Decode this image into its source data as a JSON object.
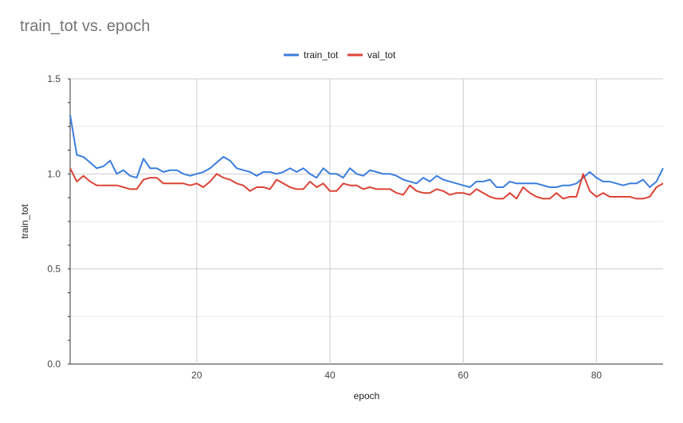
{
  "chart_data": {
    "type": "line",
    "title": "train_tot vs. epoch",
    "xlabel": "epoch",
    "ylabel": "train_tot",
    "xlim": [
      1,
      90
    ],
    "ylim": [
      0,
      1.5
    ],
    "x_ticks": [
      20,
      40,
      60,
      80
    ],
    "x_tick_labels": [
      "20",
      "40",
      "60",
      "80"
    ],
    "y_ticks": [
      0,
      0.5,
      1,
      1.5
    ],
    "y_tick_labels": [
      "0.0",
      "0.5",
      "1.0",
      "1.5"
    ],
    "grid": true,
    "legend_position": "top",
    "series": [
      {
        "name": "train_tot",
        "color": "#3b7ddd",
        "x": [
          1,
          2,
          3,
          4,
          5,
          6,
          7,
          8,
          9,
          10,
          11,
          12,
          13,
          14,
          15,
          16,
          17,
          18,
          19,
          20,
          21,
          22,
          23,
          24,
          25,
          26,
          27,
          28,
          29,
          30,
          31,
          32,
          33,
          34,
          35,
          36,
          37,
          38,
          39,
          40,
          41,
          42,
          43,
          44,
          45,
          46,
          47,
          48,
          49,
          50,
          51,
          52,
          53,
          54,
          55,
          56,
          57,
          58,
          59,
          60,
          61,
          62,
          63,
          64,
          65,
          66,
          67,
          68,
          69,
          70,
          71,
          72,
          73,
          74,
          75,
          76,
          77,
          78,
          79,
          80,
          81,
          82,
          83,
          84,
          85,
          86,
          87,
          88,
          89,
          90
        ],
        "values": [
          1.31,
          1.1,
          1.09,
          1.06,
          1.03,
          1.04,
          1.07,
          1.0,
          1.02,
          0.99,
          0.98,
          1.08,
          1.03,
          1.03,
          1.01,
          1.02,
          1.02,
          1.0,
          0.99,
          1.0,
          1.01,
          1.03,
          1.06,
          1.09,
          1.07,
          1.03,
          1.02,
          1.01,
          0.99,
          1.01,
          1.01,
          1.0,
          1.01,
          1.03,
          1.01,
          1.03,
          1.0,
          0.98,
          1.03,
          1.0,
          1.0,
          0.98,
          1.03,
          1.0,
          0.99,
          1.02,
          1.01,
          1.0,
          1.0,
          0.99,
          0.97,
          0.96,
          0.95,
          0.98,
          0.96,
          0.99,
          0.97,
          0.96,
          0.95,
          0.94,
          0.93,
          0.96,
          0.96,
          0.97,
          0.93,
          0.93,
          0.96,
          0.95,
          0.95,
          0.95,
          0.95,
          0.94,
          0.93,
          0.93,
          0.94,
          0.94,
          0.95,
          0.98,
          1.01,
          0.98,
          0.96,
          0.96,
          0.95,
          0.94,
          0.95,
          0.95,
          0.97,
          0.93,
          0.96,
          1.03
        ]
      },
      {
        "name": "val_tot",
        "color": "#db4437",
        "x": [
          1,
          2,
          3,
          4,
          5,
          6,
          7,
          8,
          9,
          10,
          11,
          12,
          13,
          14,
          15,
          16,
          17,
          18,
          19,
          20,
          21,
          22,
          23,
          24,
          25,
          26,
          27,
          28,
          29,
          30,
          31,
          32,
          33,
          34,
          35,
          36,
          37,
          38,
          39,
          40,
          41,
          42,
          43,
          44,
          45,
          46,
          47,
          48,
          49,
          50,
          51,
          52,
          53,
          54,
          55,
          56,
          57,
          58,
          59,
          60,
          61,
          62,
          63,
          64,
          65,
          66,
          67,
          68,
          69,
          70,
          71,
          72,
          73,
          74,
          75,
          76,
          77,
          78,
          79,
          80,
          81,
          82,
          83,
          84,
          85,
          86,
          87,
          88,
          89,
          90
        ],
        "values": [
          1.03,
          0.96,
          0.99,
          0.96,
          0.94,
          0.94,
          0.94,
          0.94,
          0.93,
          0.92,
          0.92,
          0.97,
          0.98,
          0.98,
          0.95,
          0.95,
          0.95,
          0.95,
          0.94,
          0.95,
          0.93,
          0.96,
          1.0,
          0.98,
          0.97,
          0.95,
          0.94,
          0.91,
          0.93,
          0.93,
          0.92,
          0.97,
          0.95,
          0.93,
          0.92,
          0.92,
          0.96,
          0.93,
          0.95,
          0.91,
          0.91,
          0.95,
          0.94,
          0.94,
          0.92,
          0.93,
          0.92,
          0.92,
          0.92,
          0.9,
          0.89,
          0.94,
          0.91,
          0.9,
          0.9,
          0.92,
          0.91,
          0.89,
          0.9,
          0.9,
          0.89,
          0.92,
          0.9,
          0.88,
          0.87,
          0.87,
          0.9,
          0.87,
          0.93,
          0.9,
          0.88,
          0.87,
          0.87,
          0.9,
          0.87,
          0.88,
          0.88,
          1.0,
          0.91,
          0.88,
          0.9,
          0.88,
          0.88,
          0.88,
          0.88,
          0.87,
          0.87,
          0.88,
          0.93,
          0.95
        ]
      }
    ]
  }
}
